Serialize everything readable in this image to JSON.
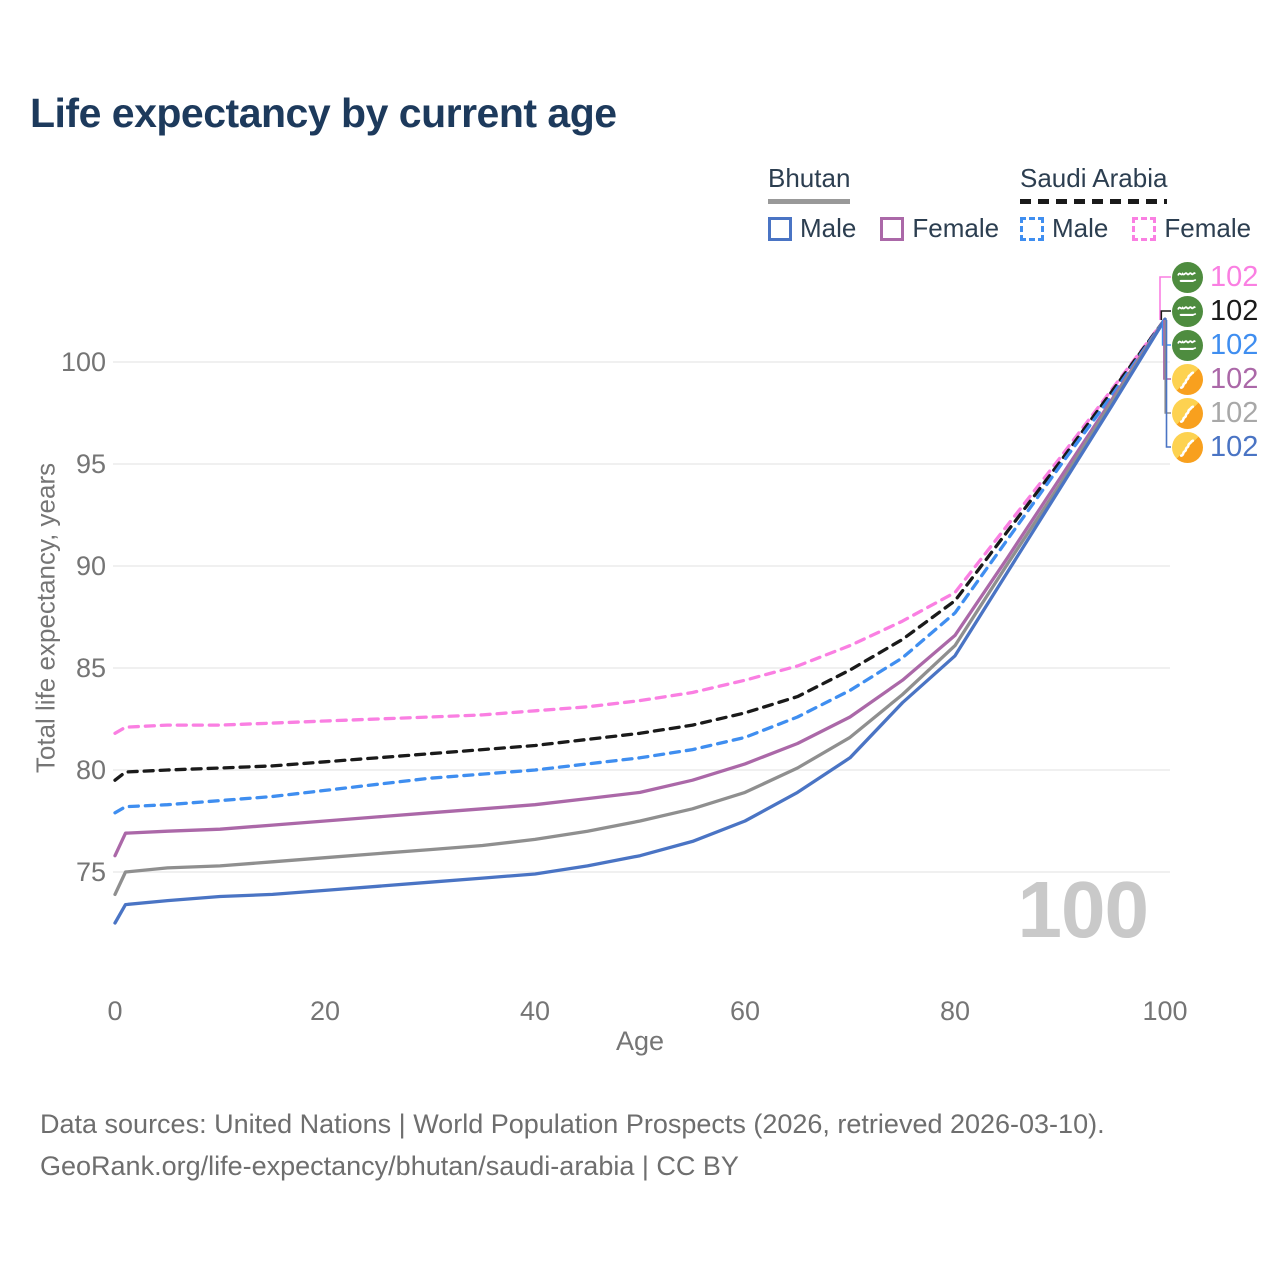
{
  "title": "Life expectancy by current age",
  "watermark_age": "100",
  "legend": {
    "groups": [
      {
        "label": "Bhutan",
        "style": "solid",
        "underline_color": "#999999",
        "items": [
          {
            "label": "Male",
            "color": "#4a74c4",
            "dashed": false
          },
          {
            "label": "Female",
            "color": "#ab68a8",
            "dashed": false
          }
        ]
      },
      {
        "label": "Saudi Arabia",
        "style": "dashed",
        "underline_color": "#1a1a1a",
        "items": [
          {
            "label": "Male",
            "color": "#3f8ef0",
            "dashed": true
          },
          {
            "label": "Female",
            "color": "#fa7fe2",
            "dashed": true
          }
        ]
      }
    ]
  },
  "chart_data": {
    "type": "line",
    "title": "Life expectancy by current age",
    "xlabel": "Age",
    "ylabel": "Total life expectancy, years",
    "x_ticks": [
      0,
      20,
      40,
      60,
      80,
      100
    ],
    "y_ticks": [
      75,
      80,
      85,
      90,
      95,
      100
    ],
    "xlim": [
      0,
      100
    ],
    "ylim": [
      72,
      103
    ],
    "grid": "horizontal",
    "legend_position": "top-right",
    "current_age_indicator": 100,
    "series": [
      {
        "id": "saudi-arabia-female",
        "name": "Saudi Arabia Female",
        "country": "Saudi Arabia",
        "sex": "Female",
        "color": "#fa7fe2",
        "dashed": true,
        "end_value": 102,
        "points": [
          [
            0,
            81.8
          ],
          [
            1,
            82.1
          ],
          [
            5,
            82.2
          ],
          [
            10,
            82.2
          ],
          [
            15,
            82.3
          ],
          [
            20,
            82.4
          ],
          [
            25,
            82.5
          ],
          [
            30,
            82.6
          ],
          [
            35,
            82.7
          ],
          [
            40,
            82.9
          ],
          [
            45,
            83.1
          ],
          [
            50,
            83.4
          ],
          [
            55,
            83.8
          ],
          [
            60,
            84.4
          ],
          [
            65,
            85.1
          ],
          [
            70,
            86.1
          ],
          [
            75,
            87.3
          ],
          [
            80,
            88.7
          ],
          [
            85,
            92.0
          ],
          [
            90,
            95.3
          ],
          [
            95,
            98.7
          ],
          [
            100,
            102.1
          ]
        ]
      },
      {
        "id": "saudi-arabia-total",
        "name": "Saudi Arabia Both sexes",
        "country": "Saudi Arabia",
        "sex": "Both",
        "color": "#1a1a1a",
        "dashed": true,
        "end_value": 102,
        "points": [
          [
            0,
            79.5
          ],
          [
            1,
            79.9
          ],
          [
            5,
            80.0
          ],
          [
            10,
            80.1
          ],
          [
            15,
            80.2
          ],
          [
            20,
            80.4
          ],
          [
            25,
            80.6
          ],
          [
            30,
            80.8
          ],
          [
            35,
            81.0
          ],
          [
            40,
            81.2
          ],
          [
            45,
            81.5
          ],
          [
            50,
            81.8
          ],
          [
            55,
            82.2
          ],
          [
            60,
            82.8
          ],
          [
            65,
            83.6
          ],
          [
            70,
            84.9
          ],
          [
            75,
            86.4
          ],
          [
            80,
            88.3
          ],
          [
            85,
            91.7
          ],
          [
            90,
            95.1
          ],
          [
            95,
            98.6
          ],
          [
            100,
            102.1
          ]
        ]
      },
      {
        "id": "saudi-arabia-male",
        "name": "Saudi Arabia Male",
        "country": "Saudi Arabia",
        "sex": "Male",
        "color": "#3f8ef0",
        "dashed": true,
        "end_value": 102,
        "points": [
          [
            0,
            77.9
          ],
          [
            1,
            78.2
          ],
          [
            5,
            78.3
          ],
          [
            10,
            78.5
          ],
          [
            15,
            78.7
          ],
          [
            20,
            79.0
          ],
          [
            25,
            79.3
          ],
          [
            30,
            79.6
          ],
          [
            35,
            79.8
          ],
          [
            40,
            80.0
          ],
          [
            45,
            80.3
          ],
          [
            50,
            80.6
          ],
          [
            55,
            81.0
          ],
          [
            60,
            81.6
          ],
          [
            65,
            82.6
          ],
          [
            70,
            83.9
          ],
          [
            75,
            85.5
          ],
          [
            80,
            87.7
          ],
          [
            85,
            91.3
          ],
          [
            90,
            94.9
          ],
          [
            95,
            98.4
          ],
          [
            100,
            102.1
          ]
        ]
      },
      {
        "id": "bhutan-female",
        "name": "Bhutan Female",
        "country": "Bhutan",
        "sex": "Female",
        "color": "#ab68a8",
        "dashed": false,
        "end_value": 102,
        "points": [
          [
            0,
            75.8
          ],
          [
            1,
            76.9
          ],
          [
            5,
            77.0
          ],
          [
            10,
            77.1
          ],
          [
            15,
            77.3
          ],
          [
            20,
            77.5
          ],
          [
            25,
            77.7
          ],
          [
            30,
            77.9
          ],
          [
            35,
            78.1
          ],
          [
            40,
            78.3
          ],
          [
            45,
            78.6
          ],
          [
            50,
            78.9
          ],
          [
            55,
            79.5
          ],
          [
            60,
            80.3
          ],
          [
            65,
            81.3
          ],
          [
            70,
            82.6
          ],
          [
            75,
            84.4
          ],
          [
            80,
            86.6
          ],
          [
            85,
            90.4
          ],
          [
            90,
            94.3
          ],
          [
            95,
            98.2
          ],
          [
            100,
            102.1
          ]
        ]
      },
      {
        "id": "bhutan-total",
        "name": "Bhutan Both sexes",
        "country": "Bhutan",
        "sex": "Both",
        "color": "#8f8f8f",
        "dashed": false,
        "end_value": 102,
        "points": [
          [
            0,
            73.9
          ],
          [
            1,
            75.0
          ],
          [
            5,
            75.2
          ],
          [
            10,
            75.3
          ],
          [
            15,
            75.5
          ],
          [
            20,
            75.7
          ],
          [
            25,
            75.9
          ],
          [
            30,
            76.1
          ],
          [
            35,
            76.3
          ],
          [
            40,
            76.6
          ],
          [
            45,
            77.0
          ],
          [
            50,
            77.5
          ],
          [
            55,
            78.1
          ],
          [
            60,
            78.9
          ],
          [
            65,
            80.1
          ],
          [
            70,
            81.6
          ],
          [
            75,
            83.7
          ],
          [
            80,
            86.1
          ],
          [
            85,
            90.1
          ],
          [
            90,
            94.0
          ],
          [
            95,
            98.1
          ],
          [
            100,
            102.1
          ]
        ]
      },
      {
        "id": "bhutan-male",
        "name": "Bhutan Male",
        "country": "Bhutan",
        "sex": "Male",
        "color": "#4a74c4",
        "dashed": false,
        "end_value": 102,
        "points": [
          [
            0,
            72.5
          ],
          [
            1,
            73.4
          ],
          [
            5,
            73.6
          ],
          [
            10,
            73.8
          ],
          [
            15,
            73.9
          ],
          [
            20,
            74.1
          ],
          [
            25,
            74.3
          ],
          [
            30,
            74.5
          ],
          [
            35,
            74.7
          ],
          [
            40,
            74.9
          ],
          [
            45,
            75.3
          ],
          [
            50,
            75.8
          ],
          [
            55,
            76.5
          ],
          [
            60,
            77.5
          ],
          [
            65,
            78.9
          ],
          [
            70,
            80.6
          ],
          [
            75,
            83.3
          ],
          [
            80,
            85.6
          ],
          [
            85,
            89.7
          ],
          [
            90,
            93.8
          ],
          [
            95,
            97.9
          ],
          [
            100,
            102.1
          ]
        ]
      }
    ]
  },
  "end_labels": [
    {
      "flag": "saudi-arabia",
      "value": "102",
      "color": "#fa7fe2",
      "text_color": "#fa7fe2"
    },
    {
      "flag": "saudi-arabia",
      "value": "102",
      "color": "#1a1a1a",
      "text_color": "#1a1a1a"
    },
    {
      "flag": "saudi-arabia",
      "value": "102",
      "color": "#3f8ef0",
      "text_color": "#3f8ef0"
    },
    {
      "flag": "bhutan",
      "value": "102",
      "color": "#ab68a8",
      "text_color": "#ab68a8"
    },
    {
      "flag": "bhutan",
      "value": "102",
      "color": "#8f8f8f",
      "text_color": "#a8a8a8"
    },
    {
      "flag": "bhutan",
      "value": "102",
      "color": "#4a74c4",
      "text_color": "#4a74c4"
    }
  ],
  "footer": {
    "line1": "Data sources: United Nations | World Population Prospects (2026, retrieved 2026-03-10).",
    "line2": "GeoRank.org/life-expectancy/bhutan/saudi-arabia | CC BY"
  }
}
